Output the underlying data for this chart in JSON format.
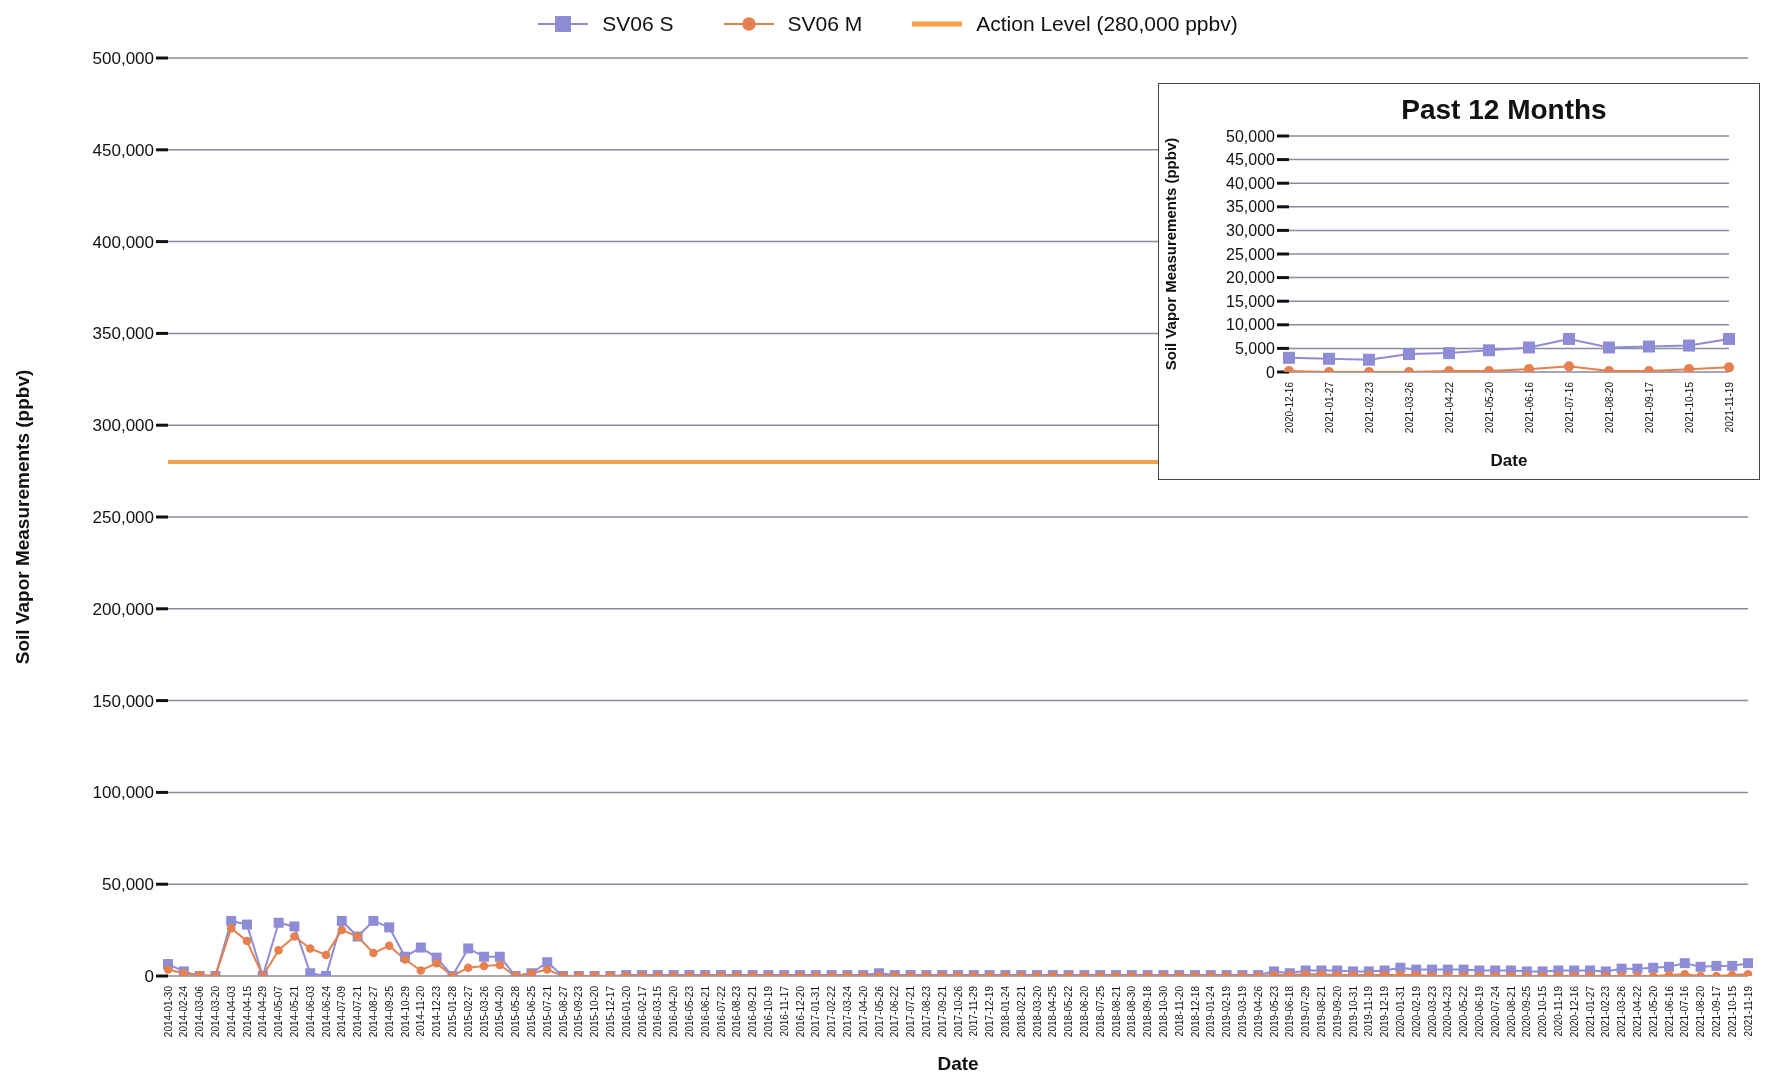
{
  "chart_data": [
    {
      "type": "line",
      "xlabel": "Date",
      "ylabel": "Soil Vapor Measurements (ppbv)",
      "legend": "top",
      "grid": "y",
      "ylim": [
        0,
        500000
      ],
      "yticks": [
        {
          "value": 0,
          "label": "0"
        },
        {
          "value": 50000,
          "label": "50,000"
        },
        {
          "value": 100000,
          "label": "100,000"
        },
        {
          "value": 150000,
          "label": "150,000"
        },
        {
          "value": 200000,
          "label": "200,000"
        },
        {
          "value": 250000,
          "label": "250,000"
        },
        {
          "value": 300000,
          "label": "300,000"
        },
        {
          "value": 350000,
          "label": "350,000"
        },
        {
          "value": 400000,
          "label": "400,000"
        },
        {
          "value": 450000,
          "label": "450,000"
        },
        {
          "value": 500000,
          "label": "500,000"
        }
      ],
      "categories": [
        "2014-01-30",
        "2014-02-24",
        "2014-03-06",
        "2014-03-20",
        "2014-04-03",
        "2014-04-15",
        "2014-04-29",
        "2014-05-07",
        "2014-05-21",
        "2014-06-03",
        "2014-06-24",
        "2014-07-09",
        "2014-07-21",
        "2014-08-27",
        "2014-09-25",
        "2014-10-29",
        "2014-11-20",
        "2014-12-23",
        "2015-01-28",
        "2015-02-27",
        "2015-03-26",
        "2015-04-20",
        "2015-05-28",
        "2015-06-25",
        "2015-07-21",
        "2015-08-27",
        "2015-09-23",
        "2015-10-20",
        "2015-12-17",
        "2016-01-20",
        "2016-02-17",
        "2016-03-15",
        "2016-04-20",
        "2016-05-23",
        "2016-06-21",
        "2016-07-22",
        "2016-08-23",
        "2016-09-21",
        "2016-10-19",
        "2016-11-17",
        "2016-12-20",
        "2017-01-31",
        "2017-02-22",
        "2017-03-24",
        "2017-04-20",
        "2017-05-26",
        "2017-06-22",
        "2017-07-21",
        "2017-08-23",
        "2017-09-21",
        "2017-10-26",
        "2017-11-29",
        "2017-12-19",
        "2018-01-24",
        "2018-02-21",
        "2018-03-20",
        "2018-04-25",
        "2018-05-22",
        "2018-06-20",
        "2018-07-25",
        "2018-08-21",
        "2018-08-30",
        "2018-09-18",
        "2018-10-30",
        "2018-11-20",
        "2018-12-18",
        "2019-01-24",
        "2019-02-19",
        "2019-03-19",
        "2019-04-26",
        "2019-05-23",
        "2019-06-18",
        "2019-07-29",
        "2019-08-21",
        "2019-09-20",
        "2019-10-31",
        "2019-11-19",
        "2019-12-19",
        "2020-01-31",
        "2020-02-19",
        "2020-03-23",
        "2020-04-23",
        "2020-05-22",
        "2020-06-19",
        "2020-07-24",
        "2020-08-21",
        "2020-09-25",
        "2020-10-15",
        "2020-11-19",
        "2020-12-16",
        "2021-01-27",
        "2021-02-23",
        "2021-03-26",
        "2021-04-22",
        "2021-05-20",
        "2021-06-16",
        "2021-07-16",
        "2021-08-20",
        "2021-09-17",
        "2021-10-15",
        "2021-11-19"
      ],
      "series": [
        {
          "name": "SV06 S",
          "color": "#8f8cd6",
          "marker": "square",
          "values": [
            6500,
            2500,
            0,
            0,
            30000,
            28000,
            0,
            29000,
            27000,
            1500,
            0,
            30000,
            21500,
            30000,
            26500,
            10500,
            15500,
            10000,
            0,
            15000,
            10500,
            10500,
            0,
            1500,
            7500,
            0,
            0,
            0,
            0,
            500,
            500,
            500,
            500,
            500,
            500,
            500,
            500,
            500,
            500,
            500,
            500,
            500,
            500,
            500,
            500,
            1500,
            500,
            500,
            500,
            500,
            500,
            500,
            500,
            500,
            500,
            500,
            500,
            500,
            500,
            500,
            500,
            500,
            500,
            500,
            500,
            500,
            500,
            500,
            500,
            500,
            2500,
            1500,
            3000,
            3000,
            3000,
            2500,
            2500,
            3000,
            4500,
            3500,
            3500,
            3500,
            3500,
            3000,
            3000,
            3000,
            2500,
            2500,
            3000,
            3000,
            3000,
            2500,
            4000,
            4000,
            4500,
            5000,
            7000,
            5000,
            5500,
            5500,
            7000
          ]
        },
        {
          "name": "SV06 M",
          "color": "#e5804f",
          "marker": "circle",
          "values": [
            3500,
            1500,
            500,
            0,
            26000,
            19000,
            0,
            14000,
            21500,
            15000,
            11500,
            25000,
            21500,
            12500,
            16500,
            9000,
            3000,
            7000,
            0,
            4500,
            5500,
            6000,
            0,
            1500,
            3500,
            0,
            0,
            0,
            0,
            0,
            0,
            0,
            0,
            0,
            0,
            0,
            0,
            0,
            0,
            0,
            0,
            0,
            0,
            0,
            0,
            0,
            0,
            0,
            0,
            0,
            0,
            0,
            0,
            0,
            0,
            0,
            0,
            0,
            0,
            0,
            0,
            0,
            0,
            0,
            0,
            0,
            0,
            0,
            0,
            0,
            500,
            500,
            1000,
            1000,
            500,
            500,
            500,
            500,
            500,
            500,
            0,
            0,
            0,
            0,
            0,
            0,
            0,
            0,
            0,
            0,
            0,
            0,
            0,
            0,
            0,
            500,
            1000,
            0,
            0,
            500,
            1000
          ]
        }
      ],
      "ref_lines": [
        {
          "axis": "y",
          "value": 280000,
          "label": "Action Level (280,000 ppbv)",
          "color": "#f5a04a"
        }
      ]
    },
    {
      "type": "line",
      "title": "Past 12 Months",
      "xlabel": "Date",
      "ylabel": "Soil Vapor Measurements (ppbv)",
      "grid": "y",
      "ylim": [
        0,
        50000
      ],
      "yticks": [
        {
          "value": 0,
          "label": "0"
        },
        {
          "value": 5000,
          "label": "5,000"
        },
        {
          "value": 10000,
          "label": "10,000"
        },
        {
          "value": 15000,
          "label": "15,000"
        },
        {
          "value": 20000,
          "label": "20,000"
        },
        {
          "value": 25000,
          "label": "25,000"
        },
        {
          "value": 30000,
          "label": "30,000"
        },
        {
          "value": 35000,
          "label": "35,000"
        },
        {
          "value": 40000,
          "label": "40,000"
        },
        {
          "value": 45000,
          "label": "45,000"
        },
        {
          "value": 50000,
          "label": "50,000"
        }
      ],
      "categories": [
        "2020-12-16",
        "2021-01-27",
        "2021-02-23",
        "2021-03-26",
        "2021-04-22",
        "2021-05-20",
        "2021-06-16",
        "2021-07-16",
        "2021-08-20",
        "2021-09-17",
        "2021-10-15",
        "2021-11-19"
      ],
      "series": [
        {
          "color": "#8f8cd6",
          "marker": "square",
          "values": [
            3000,
            2800,
            2600,
            3800,
            4000,
            4600,
            5200,
            7000,
            5200,
            5400,
            5600,
            7000
          ]
        },
        {
          "color": "#e5804f",
          "marker": "circle",
          "values": [
            200,
            0,
            0,
            0,
            200,
            200,
            600,
            1200,
            200,
            200,
            600,
            1000
          ]
        }
      ]
    }
  ]
}
